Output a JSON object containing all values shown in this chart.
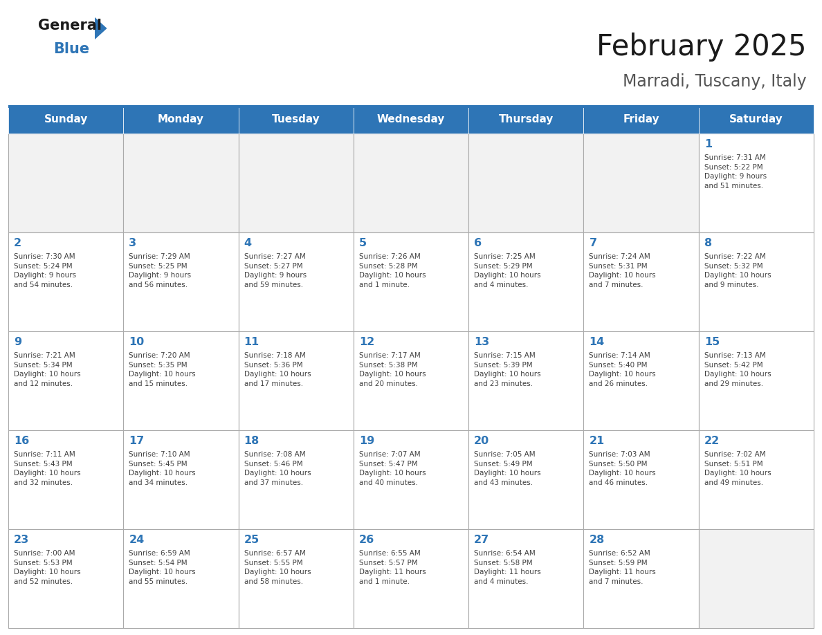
{
  "title": "February 2025",
  "subtitle": "Marradi, Tuscany, Italy",
  "header_color": "#2E75B6",
  "header_text_color": "#FFFFFF",
  "days_of_week": [
    "Sunday",
    "Monday",
    "Tuesday",
    "Wednesday",
    "Thursday",
    "Friday",
    "Saturday"
  ],
  "cell_bg_color": "#FFFFFF",
  "empty_cell_bg_color": "#F2F2F2",
  "day_number_color": "#2E75B6",
  "info_text_color": "#404040",
  "border_color": "#AAAAAA",
  "logo_text_color": "#1a1a1a",
  "logo_blue_color": "#2E75B6",
  "weeks": [
    [
      {
        "day": null,
        "info": ""
      },
      {
        "day": null,
        "info": ""
      },
      {
        "day": null,
        "info": ""
      },
      {
        "day": null,
        "info": ""
      },
      {
        "day": null,
        "info": ""
      },
      {
        "day": null,
        "info": ""
      },
      {
        "day": 1,
        "info": "Sunrise: 7:31 AM\nSunset: 5:22 PM\nDaylight: 9 hours\nand 51 minutes."
      }
    ],
    [
      {
        "day": 2,
        "info": "Sunrise: 7:30 AM\nSunset: 5:24 PM\nDaylight: 9 hours\nand 54 minutes."
      },
      {
        "day": 3,
        "info": "Sunrise: 7:29 AM\nSunset: 5:25 PM\nDaylight: 9 hours\nand 56 minutes."
      },
      {
        "day": 4,
        "info": "Sunrise: 7:27 AM\nSunset: 5:27 PM\nDaylight: 9 hours\nand 59 minutes."
      },
      {
        "day": 5,
        "info": "Sunrise: 7:26 AM\nSunset: 5:28 PM\nDaylight: 10 hours\nand 1 minute."
      },
      {
        "day": 6,
        "info": "Sunrise: 7:25 AM\nSunset: 5:29 PM\nDaylight: 10 hours\nand 4 minutes."
      },
      {
        "day": 7,
        "info": "Sunrise: 7:24 AM\nSunset: 5:31 PM\nDaylight: 10 hours\nand 7 minutes."
      },
      {
        "day": 8,
        "info": "Sunrise: 7:22 AM\nSunset: 5:32 PM\nDaylight: 10 hours\nand 9 minutes."
      }
    ],
    [
      {
        "day": 9,
        "info": "Sunrise: 7:21 AM\nSunset: 5:34 PM\nDaylight: 10 hours\nand 12 minutes."
      },
      {
        "day": 10,
        "info": "Sunrise: 7:20 AM\nSunset: 5:35 PM\nDaylight: 10 hours\nand 15 minutes."
      },
      {
        "day": 11,
        "info": "Sunrise: 7:18 AM\nSunset: 5:36 PM\nDaylight: 10 hours\nand 17 minutes."
      },
      {
        "day": 12,
        "info": "Sunrise: 7:17 AM\nSunset: 5:38 PM\nDaylight: 10 hours\nand 20 minutes."
      },
      {
        "day": 13,
        "info": "Sunrise: 7:15 AM\nSunset: 5:39 PM\nDaylight: 10 hours\nand 23 minutes."
      },
      {
        "day": 14,
        "info": "Sunrise: 7:14 AM\nSunset: 5:40 PM\nDaylight: 10 hours\nand 26 minutes."
      },
      {
        "day": 15,
        "info": "Sunrise: 7:13 AM\nSunset: 5:42 PM\nDaylight: 10 hours\nand 29 minutes."
      }
    ],
    [
      {
        "day": 16,
        "info": "Sunrise: 7:11 AM\nSunset: 5:43 PM\nDaylight: 10 hours\nand 32 minutes."
      },
      {
        "day": 17,
        "info": "Sunrise: 7:10 AM\nSunset: 5:45 PM\nDaylight: 10 hours\nand 34 minutes."
      },
      {
        "day": 18,
        "info": "Sunrise: 7:08 AM\nSunset: 5:46 PM\nDaylight: 10 hours\nand 37 minutes."
      },
      {
        "day": 19,
        "info": "Sunrise: 7:07 AM\nSunset: 5:47 PM\nDaylight: 10 hours\nand 40 minutes."
      },
      {
        "day": 20,
        "info": "Sunrise: 7:05 AM\nSunset: 5:49 PM\nDaylight: 10 hours\nand 43 minutes."
      },
      {
        "day": 21,
        "info": "Sunrise: 7:03 AM\nSunset: 5:50 PM\nDaylight: 10 hours\nand 46 minutes."
      },
      {
        "day": 22,
        "info": "Sunrise: 7:02 AM\nSunset: 5:51 PM\nDaylight: 10 hours\nand 49 minutes."
      }
    ],
    [
      {
        "day": 23,
        "info": "Sunrise: 7:00 AM\nSunset: 5:53 PM\nDaylight: 10 hours\nand 52 minutes."
      },
      {
        "day": 24,
        "info": "Sunrise: 6:59 AM\nSunset: 5:54 PM\nDaylight: 10 hours\nand 55 minutes."
      },
      {
        "day": 25,
        "info": "Sunrise: 6:57 AM\nSunset: 5:55 PM\nDaylight: 10 hours\nand 58 minutes."
      },
      {
        "day": 26,
        "info": "Sunrise: 6:55 AM\nSunset: 5:57 PM\nDaylight: 11 hours\nand 1 minute."
      },
      {
        "day": 27,
        "info": "Sunrise: 6:54 AM\nSunset: 5:58 PM\nDaylight: 11 hours\nand 4 minutes."
      },
      {
        "day": 28,
        "info": "Sunrise: 6:52 AM\nSunset: 5:59 PM\nDaylight: 11 hours\nand 7 minutes."
      },
      {
        "day": null,
        "info": ""
      }
    ]
  ]
}
